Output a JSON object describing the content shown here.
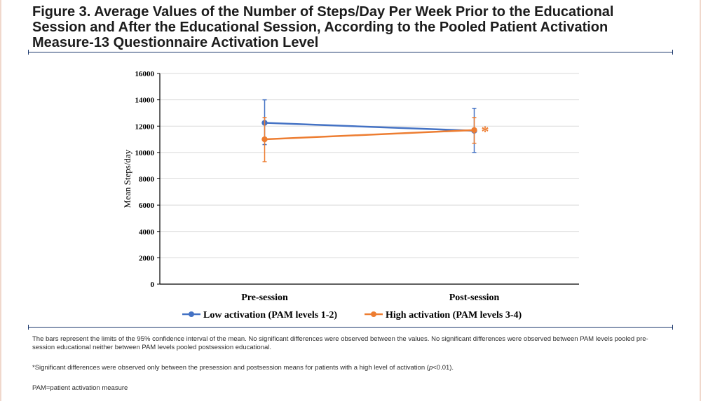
{
  "title": "Figure 3. Average Values of the Number of Steps/Day Per Week Prior to the Educational Session and After the Educational Session, According to the Pooled Patient Activation Measure-13 Questionnaire Activation Level",
  "footnotes": {
    "note1": "The bars represent the limits of the 95% confidence interval of the mean. No significant differences were observed between the values. No significant differences were observed between PAM levels pooled pre-session educational neither between PAM levels pooled postsession educational.",
    "note2_before": "*Significant differences were observed only between the presession and postsession means for patients with a high level of activation (",
    "note2_p": "p",
    "note2_after": "<0.01).",
    "note3": "PAM=patient activation measure"
  },
  "chart_data": {
    "type": "line",
    "categories": [
      "Pre-session",
      "Post-session"
    ],
    "ylabel": "Mean Steps/day",
    "xlabel": "",
    "ylim": [
      0,
      16000
    ],
    "yticks": [
      0,
      2000,
      4000,
      6000,
      8000,
      10000,
      12000,
      14000,
      16000
    ],
    "grid": true,
    "legend_position": "bottom",
    "significance_marker": {
      "text": "*",
      "series": "High activation (PAM levels 3-4)",
      "category": "Post-session"
    },
    "series": [
      {
        "name": "Low activation (PAM levels 1-2)",
        "color": "#4472c4",
        "values": [
          12250,
          11650
        ],
        "ci_low": [
          10600,
          10000
        ],
        "ci_high": [
          14000,
          13350
        ]
      },
      {
        "name": "High activation (PAM levels 3-4)",
        "color": "#ed7d31",
        "values": [
          11000,
          11700
        ],
        "ci_low": [
          9300,
          10700
        ],
        "ci_high": [
          12650,
          12650
        ]
      }
    ]
  }
}
